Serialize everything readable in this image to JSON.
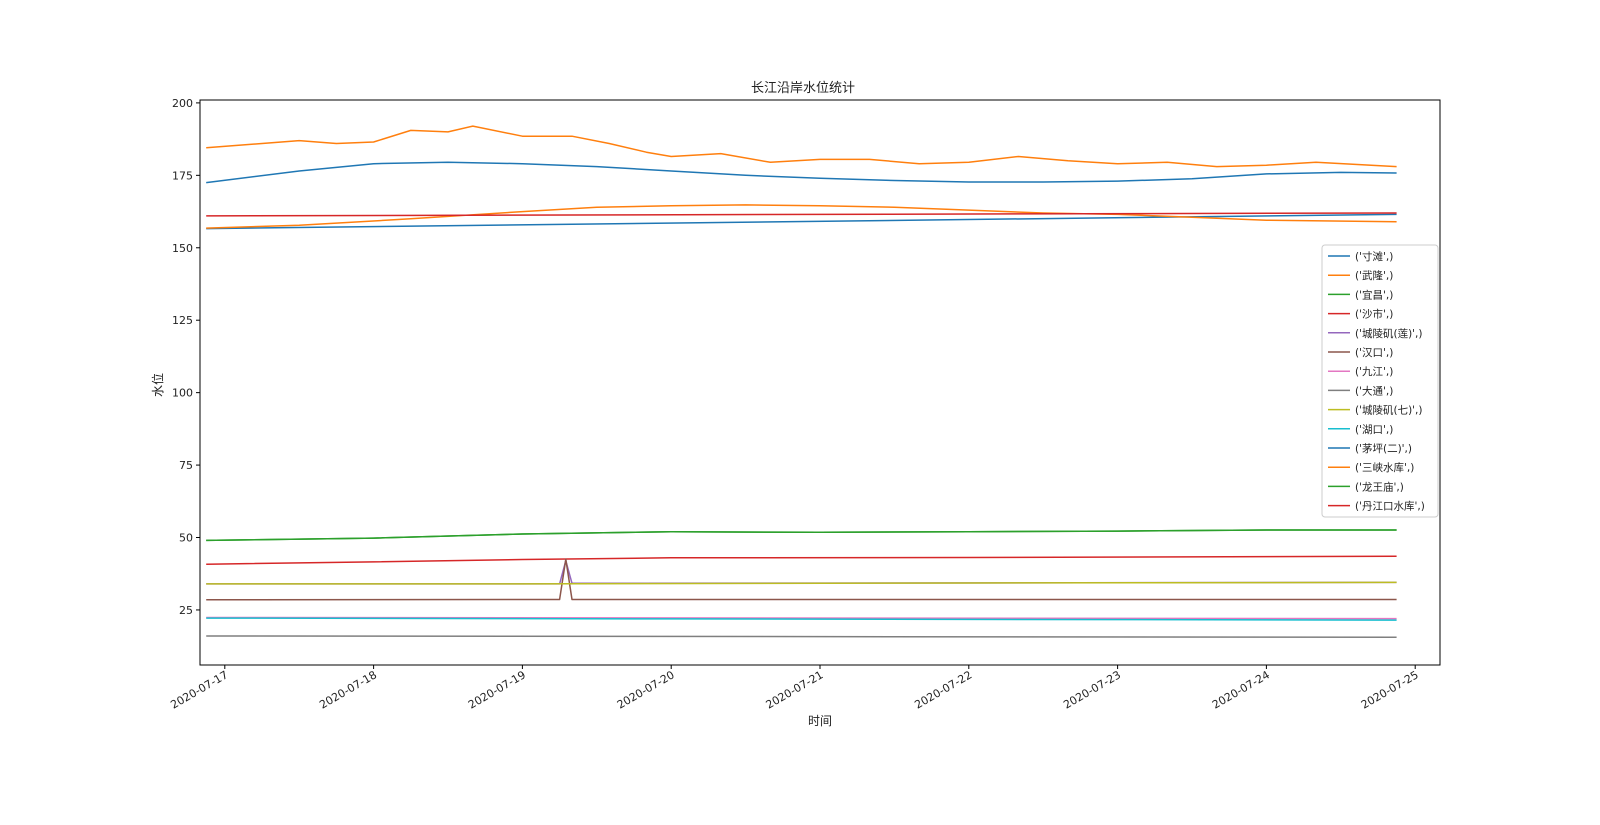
{
  "chart_data": {
    "type": "line",
    "title": "长江沿岸水位统计",
    "xlabel": "时间",
    "ylabel": "水位",
    "x_range": [
      "2020-07-16T20:00",
      "2020-07-25T04:00"
    ],
    "ylim": [
      6,
      201
    ],
    "y_ticks": [
      25,
      50,
      75,
      100,
      125,
      150,
      175,
      200
    ],
    "x_ticks": [
      "2020-07-17",
      "2020-07-18",
      "2020-07-19",
      "2020-07-20",
      "2020-07-21",
      "2020-07-22",
      "2020-07-23",
      "2020-07-24",
      "2020-07-25"
    ],
    "grid": false,
    "legend_position": "center-right",
    "series": [
      {
        "name": "('寸滩',)",
        "color": "#1f77b4",
        "x": [
          "2020-07-16T21:00",
          "2020-07-17T12:00",
          "2020-07-18T00:00",
          "2020-07-18T12:00",
          "2020-07-19T00:00",
          "2020-07-19T12:00",
          "2020-07-20T00:00",
          "2020-07-20T12:00",
          "2020-07-21T00:00",
          "2020-07-21T12:00",
          "2020-07-22T00:00",
          "2020-07-22T12:00",
          "2020-07-23T00:00",
          "2020-07-23T12:00",
          "2020-07-24T00:00",
          "2020-07-24T12:00",
          "2020-07-24T21:00"
        ],
        "y": [
          172.5,
          176.5,
          179.0,
          179.5,
          179.0,
          178.0,
          176.5,
          175.0,
          174.0,
          173.2,
          172.7,
          172.7,
          173.0,
          173.8,
          175.5,
          176.0,
          175.8
        ]
      },
      {
        "name": "('武隆',)",
        "color": "#ff7f0e",
        "x": [
          "2020-07-16T21:00",
          "2020-07-17T06:00",
          "2020-07-17T12:00",
          "2020-07-17T18:00",
          "2020-07-18T00:00",
          "2020-07-18T06:00",
          "2020-07-18T12:00",
          "2020-07-18T16:00",
          "2020-07-19T00:00",
          "2020-07-19T08:00",
          "2020-07-19T14:00",
          "2020-07-19T20:00",
          "2020-07-20T00:00",
          "2020-07-20T08:00",
          "2020-07-20T16:00",
          "2020-07-21T00:00",
          "2020-07-21T08:00",
          "2020-07-21T16:00",
          "2020-07-22T00:00",
          "2020-07-22T08:00",
          "2020-07-22T16:00",
          "2020-07-23T00:00",
          "2020-07-23T08:00",
          "2020-07-23T16:00",
          "2020-07-24T00:00",
          "2020-07-24T08:00",
          "2020-07-24T21:00"
        ],
        "y": [
          184.5,
          186.0,
          187.0,
          186.0,
          186.5,
          190.5,
          190.0,
          192.0,
          188.5,
          188.5,
          186.0,
          183.0,
          181.5,
          182.5,
          179.5,
          180.5,
          180.5,
          179.0,
          179.5,
          181.5,
          180.0,
          179.0,
          179.5,
          178.0,
          178.5,
          179.5,
          178.0
        ]
      },
      {
        "name": "('宜昌',)",
        "color": "#2ca02c",
        "x": [
          "2020-07-16T21:00",
          "2020-07-18T00:00",
          "2020-07-19T00:00",
          "2020-07-20T00:00",
          "2020-07-21T00:00",
          "2020-07-22T00:00",
          "2020-07-23T00:00",
          "2020-07-24T00:00",
          "2020-07-24T21:00"
        ],
        "y": [
          49.0,
          49.8,
          51.2,
          52.0,
          51.8,
          52.0,
          52.2,
          52.6,
          52.6
        ]
      },
      {
        "name": "('沙市',)",
        "color": "#d62728",
        "x": [
          "2020-07-16T21:00",
          "2020-07-18T00:00",
          "2020-07-19T00:00",
          "2020-07-20T00:00",
          "2020-07-22T00:00",
          "2020-07-24T21:00"
        ],
        "y": [
          40.8,
          41.6,
          42.4,
          43.0,
          43.1,
          43.5
        ]
      },
      {
        "name": "('城陵矶(莲)',)",
        "color": "#9467bd",
        "x": [
          "2020-07-16T21:00",
          "2020-07-19T06:00",
          "2020-07-19T07:00",
          "2020-07-19T08:00",
          "2020-07-24T21:00"
        ],
        "y": [
          34.0,
          34.0,
          42.0,
          34.2,
          34.5
        ]
      },
      {
        "name": "('汉口',)",
        "color": "#8c564b",
        "x": [
          "2020-07-16T21:00",
          "2020-07-19T06:00",
          "2020-07-19T07:00",
          "2020-07-19T08:00",
          "2020-07-24T21:00"
        ],
        "y": [
          28.5,
          28.6,
          42.5,
          28.6,
          28.6
        ]
      },
      {
        "name": "('九江',)",
        "color": "#e377c2",
        "x": [
          "2020-07-16T21:00",
          "2020-07-24T21:00"
        ],
        "y": [
          22.4,
          22.0
        ]
      },
      {
        "name": "('大通',)",
        "color": "#7f7f7f",
        "x": [
          "2020-07-16T21:00",
          "2020-07-24T21:00"
        ],
        "y": [
          16.0,
          15.6
        ]
      },
      {
        "name": "('城陵矶(七)',)",
        "color": "#bcbd22",
        "x": [
          "2020-07-16T21:00",
          "2020-07-19T00:00",
          "2020-07-22T00:00",
          "2020-07-24T21:00"
        ],
        "y": [
          34.0,
          34.0,
          34.3,
          34.5
        ]
      },
      {
        "name": "('湖口',)",
        "color": "#17becf",
        "x": [
          "2020-07-16T21:00",
          "2020-07-20T00:00",
          "2020-07-24T21:00"
        ],
        "y": [
          22.2,
          21.9,
          21.5
        ]
      },
      {
        "name": "('茅坪(二)',)",
        "color": "#1f77b4",
        "x": [
          "2020-07-16T21:00",
          "2020-07-24T21:00"
        ],
        "y": [
          156.6,
          161.5
        ]
      },
      {
        "name": "('三峡水库',)",
        "color": "#ff7f0e",
        "x": [
          "2020-07-16T21:00",
          "2020-07-17T12:00",
          "2020-07-18T06:00",
          "2020-07-19T00:00",
          "2020-07-19T12:00",
          "2020-07-20T00:00",
          "2020-07-20T12:00",
          "2020-07-21T00:00",
          "2020-07-21T12:00",
          "2020-07-22T00:00",
          "2020-07-22T12:00",
          "2020-07-23T00:00",
          "2020-07-23T12:00",
          "2020-07-24T00:00",
          "2020-07-24T21:00"
        ],
        "y": [
          156.8,
          157.8,
          160.0,
          162.5,
          164.0,
          164.5,
          164.8,
          164.5,
          164.0,
          163.0,
          162.0,
          161.5,
          160.5,
          159.5,
          159.0
        ]
      },
      {
        "name": "('龙王庙',)",
        "color": "#2ca02c",
        "x": [
          "2020-07-16T21:00",
          "2020-07-18T00:00",
          "2020-07-19T00:00",
          "2020-07-20T00:00",
          "2020-07-21T00:00",
          "2020-07-22T00:00",
          "2020-07-23T00:00",
          "2020-07-24T00:00",
          "2020-07-24T21:00"
        ],
        "y": [
          49.0,
          49.8,
          51.2,
          52.0,
          51.8,
          52.0,
          52.2,
          52.6,
          52.6
        ]
      },
      {
        "name": "('丹江口水库',)",
        "color": "#d62728",
        "x": [
          "2020-07-16T21:00",
          "2020-07-24T21:00"
        ],
        "y": [
          161.0,
          162.0
        ]
      }
    ]
  }
}
